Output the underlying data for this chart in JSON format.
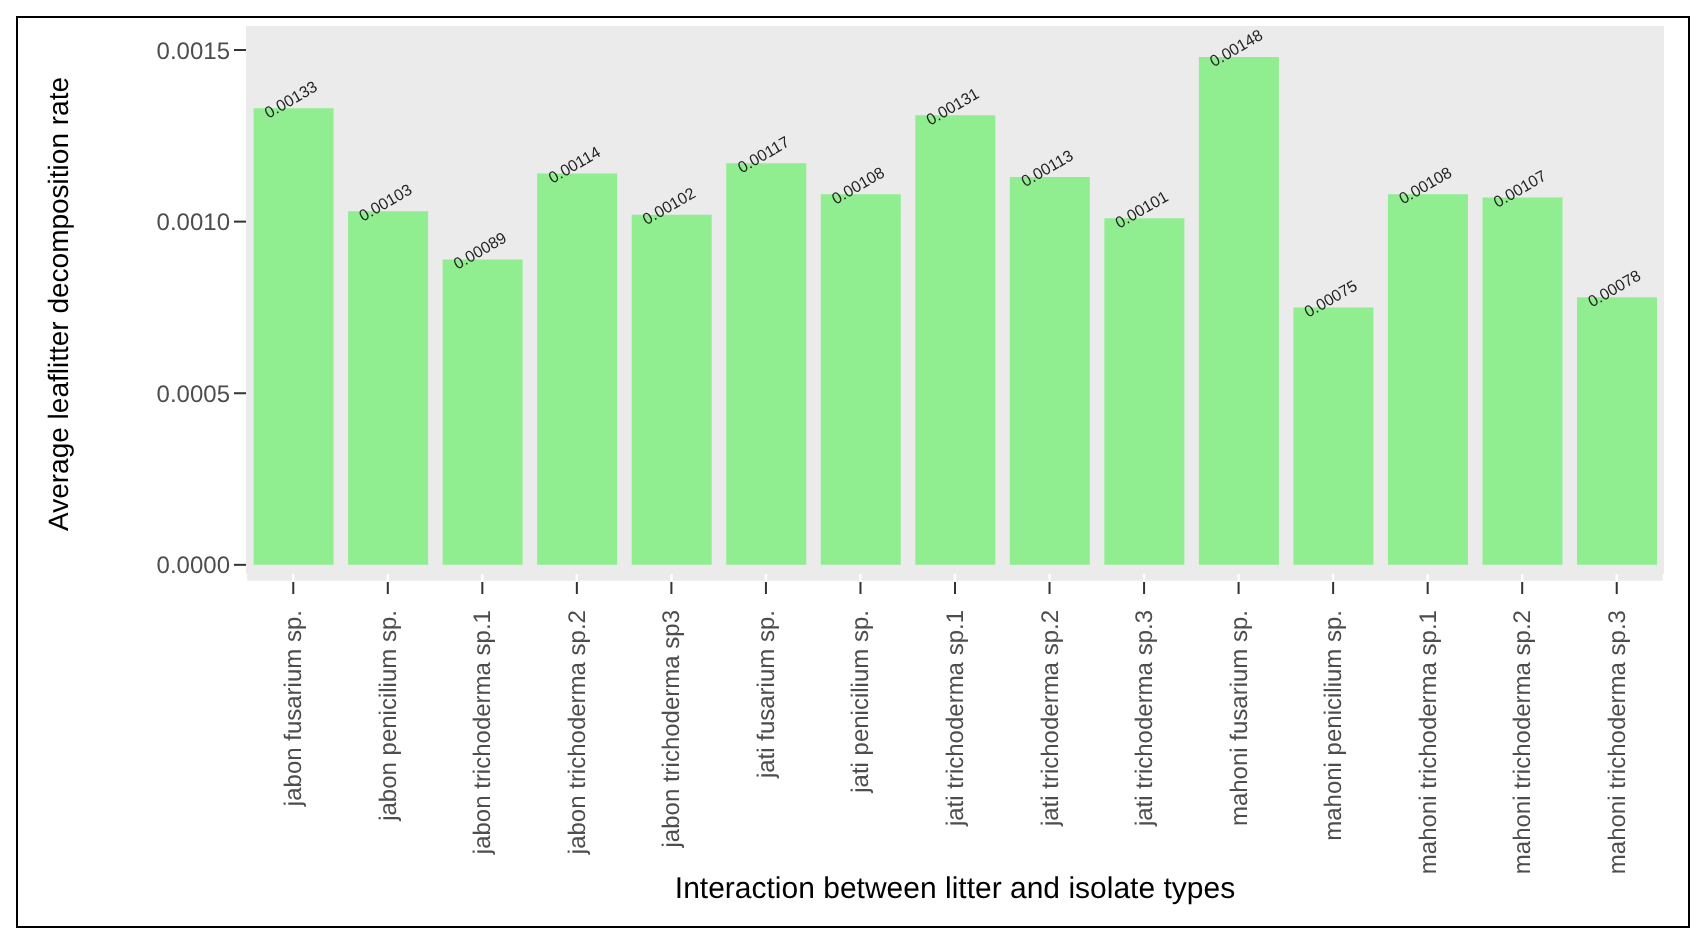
{
  "chart_data": {
    "type": "bar",
    "xlabel": "Interaction between litter and isolate types",
    "ylabel": "Average leaflitter decomposition rate",
    "categories": [
      "jabon fusarium sp.",
      "jabon penicilium sp.",
      "jabon trichoderma sp.1",
      "jabon trichoderma sp.2",
      "jabon trichoderma sp3",
      "jati fusarium sp.",
      "jati penicilium sp.",
      "jati trichoderma sp.1",
      "jati trichoderma sp.2",
      "jati trichoderma sp.3",
      "mahoni fusarium sp.",
      "mahoni penicilium sp.",
      "mahoni trichoderma sp.1",
      "mahoni trichoderma sp.2",
      "mahoni trichoderma sp.3"
    ],
    "values": [
      0.00133,
      0.00103,
      0.00089,
      0.00114,
      0.00102,
      0.00117,
      0.00108,
      0.00131,
      0.00113,
      0.00101,
      0.00148,
      0.00075,
      0.00108,
      0.00107,
      0.00078
    ],
    "color": "#90ee90",
    "data_labels": true,
    "grid": true,
    "ylim": [
      -5e-05,
      0.00157
    ],
    "yticks": [
      {
        "value": 0,
        "label": "0.0000"
      },
      {
        "value": 0.0005,
        "label": "0.0005"
      },
      {
        "value": 0.001,
        "label": "0.0010"
      },
      {
        "value": 0.0015,
        "label": "0.0015"
      }
    ]
  }
}
